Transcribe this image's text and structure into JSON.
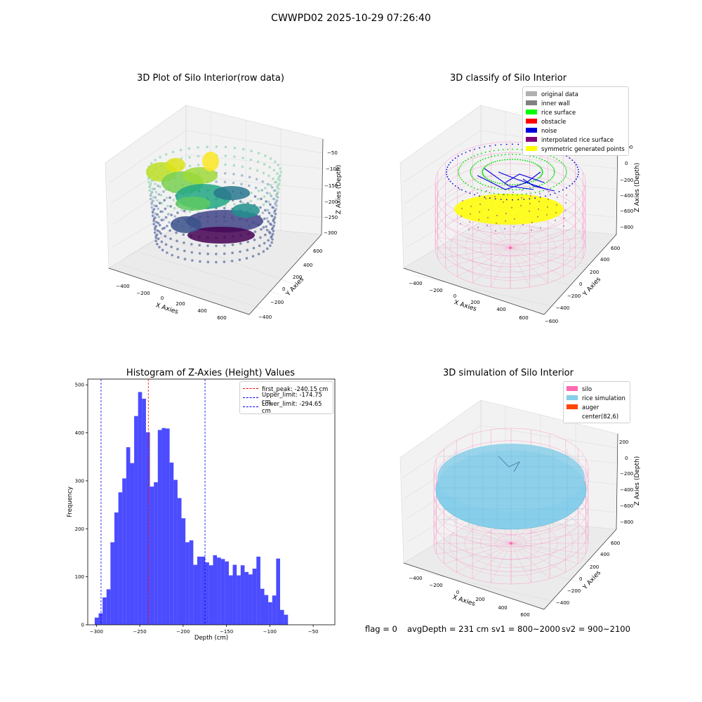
{
  "suptitle": "CWWPD02 2025-10-29 07:26:40",
  "panels": {
    "raw": {
      "title": "3D Plot of Silo Interior(row data)",
      "xlabel": "X Axies",
      "ylabel": "Y Axies",
      "zlabel": "Z Axies (Depth)",
      "xticks": [
        "-400",
        "-200",
        "0",
        "200",
        "400",
        "600"
      ],
      "yticks": [
        "-400",
        "-200",
        "0",
        "200",
        "400",
        "600"
      ],
      "zticks": [
        "-50",
        "-100",
        "-150",
        "-200",
        "-250",
        "-300"
      ]
    },
    "classify": {
      "title": "3D classify of Silo Interior",
      "xlabel": "X Axies",
      "ylabel": "Y Axies",
      "zlabel": "Z Axies (Depth)",
      "xticks": [
        "-400",
        "-200",
        "0",
        "200",
        "400",
        "600"
      ],
      "yticks": [
        "-600",
        "-400",
        "-200",
        "0",
        "200",
        "400",
        "600"
      ],
      "zticks": [
        "200",
        "0",
        "-200",
        "-400",
        "-600",
        "-800"
      ],
      "legend": [
        {
          "label": "original data",
          "color": "#b0b0b0"
        },
        {
          "label": "inner wall",
          "color": "#808080"
        },
        {
          "label": "rice surface",
          "color": "#00ff00"
        },
        {
          "label": "obstacle",
          "color": "#ff0000"
        },
        {
          "label": "noise",
          "color": "#0000dd"
        },
        {
          "label": "interpolated rice surface",
          "color": "#800080"
        },
        {
          "label": "symmetric generated points",
          "color": "#ffff00"
        }
      ]
    },
    "simulation": {
      "title": "3D simulation of Silo Interior",
      "xlabel": "X Axies",
      "ylabel": "Y Axies",
      "zlabel": "Z Axies (Depth)",
      "xticks": [
        "-400",
        "-200",
        "0",
        "200",
        "400",
        "600"
      ],
      "yticks": [
        "-400",
        "-200",
        "0",
        "200",
        "400",
        "600"
      ],
      "zticks": [
        "200",
        "0",
        "-200",
        "-400",
        "-600",
        "-800"
      ],
      "legend": [
        {
          "label": "silo",
          "color": "#ff69b4"
        },
        {
          "label": "rice simulation",
          "color": "#87ceeb"
        },
        {
          "label": "auger",
          "color": "#ff4500"
        },
        {
          "label": "center(82,6)",
          "color": ""
        }
      ]
    }
  },
  "footer": {
    "flag": "flag = 0",
    "avgdepth": "avgDepth = 231 cm",
    "sv1": "sv1 = 800~2000",
    "sv2": "sv2 = 900~2100"
  },
  "chart_data": {
    "type": "bar",
    "title": "Histogram of Z-Axies (Height) Values",
    "xlabel": "Depth (cm)",
    "ylabel": "Frequency",
    "xlim": [
      -310,
      -25
    ],
    "ylim": [
      0,
      512
    ],
    "xticks": [
      -300,
      -250,
      -200,
      -150,
      -100,
      -50
    ],
    "yticks": [
      0,
      100,
      200,
      300,
      400,
      500
    ],
    "bar_color": "#0000ff",
    "bin_start": -302.0,
    "bin_width": 4.55,
    "values": [
      15,
      24,
      57,
      74,
      172,
      234,
      276,
      305,
      370,
      337,
      435,
      485,
      471,
      401,
      288,
      297,
      406,
      410,
      409,
      338,
      302,
      264,
      222,
      172,
      176,
      125,
      142,
      142,
      130,
      124,
      145,
      140,
      137,
      132,
      103,
      125,
      103,
      124,
      110,
      105,
      117,
      142,
      75,
      62,
      47,
      61,
      138,
      31,
      21
    ],
    "vlines": [
      {
        "x": -240.15,
        "color": "#ff0000",
        "label": "first_peak: -240.15 cm"
      },
      {
        "x": -174.75,
        "color": "#0000ff",
        "label": "Upper_limit: -174.75 cm"
      },
      {
        "x": -294.65,
        "color": "#0000ff",
        "label": "Lower_limit: -294.65 cm"
      }
    ],
    "legend_position": "top-right"
  }
}
